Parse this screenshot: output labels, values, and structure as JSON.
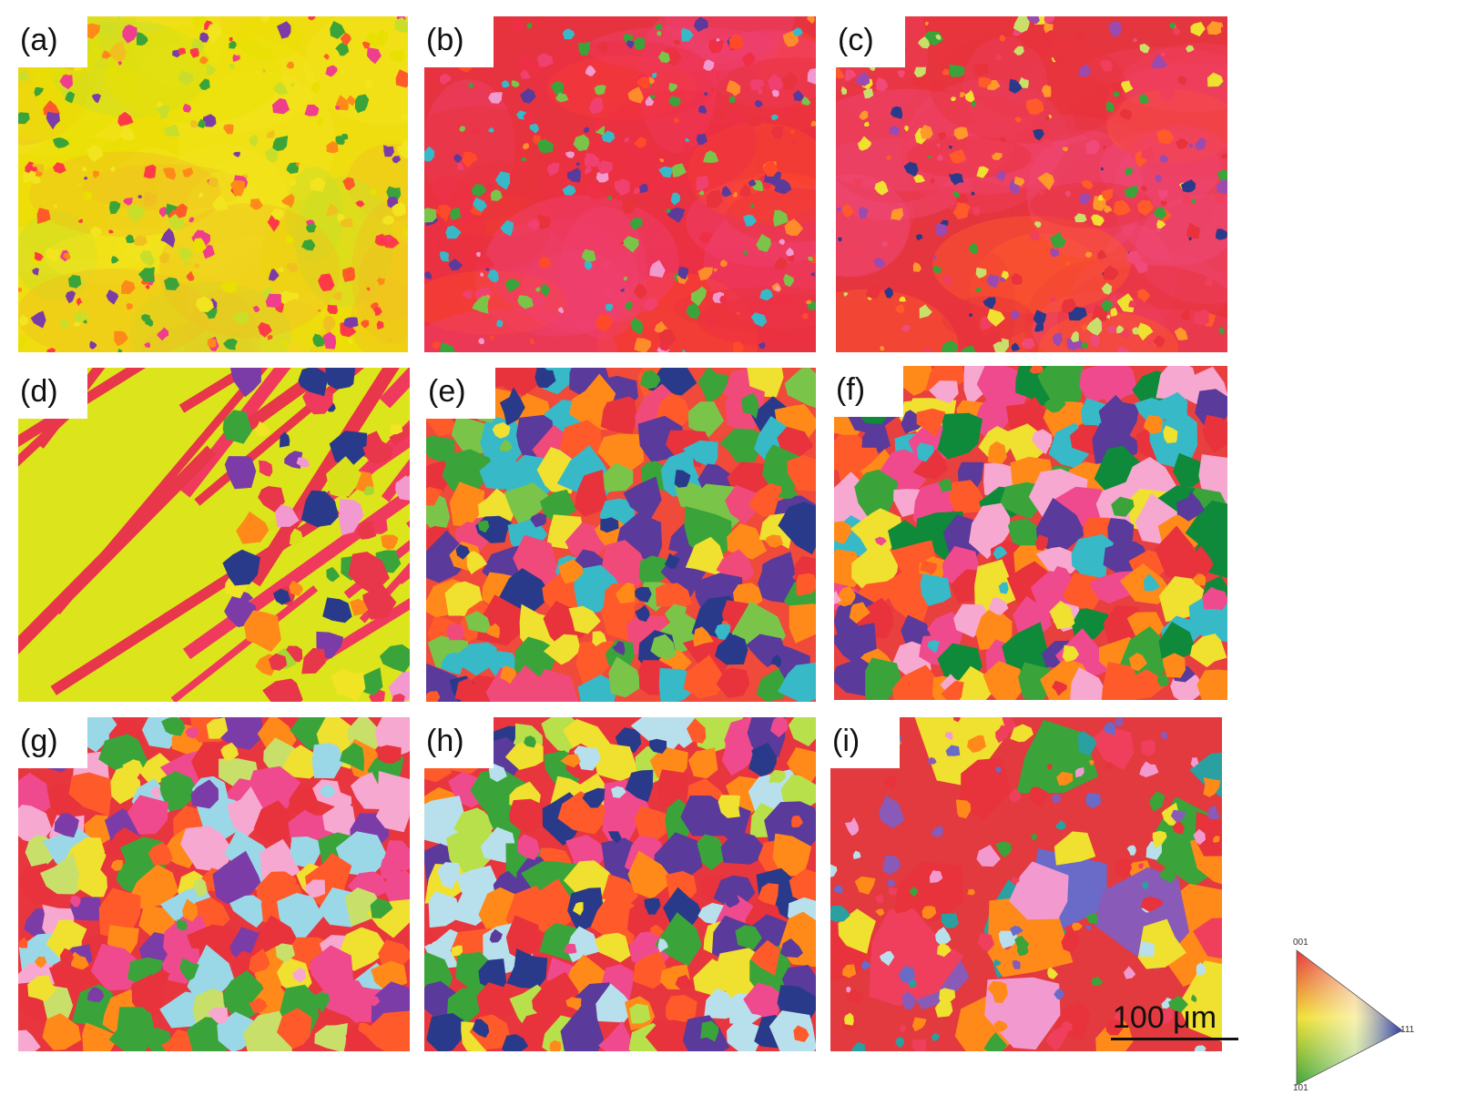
{
  "figure": {
    "panels": [
      {
        "label": "(a)",
        "palette": [
          "#e8e000",
          "#f2e51f",
          "#c9de2a",
          "#f0c020",
          "#ff8a1a",
          "#ff5a2a",
          "#ff3a48",
          "#ef3e8e",
          "#7b3ca8",
          "#3aa43a"
        ],
        "base": "#f0dd10"
      },
      {
        "label": "(b)",
        "palette": [
          "#e8323c",
          "#ef2f45",
          "#f04070",
          "#ff4a2a",
          "#ff8c2a",
          "#f29ad0",
          "#3aa43a",
          "#7bc44a",
          "#5a3a9a",
          "#37b9c8"
        ],
        "base": "#e6333f"
      },
      {
        "label": "(c)",
        "palette": [
          "#e8323c",
          "#ef3f5c",
          "#f04a7a",
          "#ff5a2a",
          "#9b4ab0",
          "#3aa43a",
          "#c8e06a",
          "#ff9a2a",
          "#2a3a8a",
          "#f0e030"
        ],
        "base": "#e5353f"
      },
      {
        "label": "(d)",
        "palette": [
          "#d8e01a",
          "#f0e424",
          "#a8d632",
          "#e8364a",
          "#ef3a5e",
          "#7b3ca8",
          "#3aa43a",
          "#ff8a1a",
          "#2a3a8a",
          "#f29ad0"
        ],
        "base": "#dce51c"
      },
      {
        "label": "(e)",
        "palette": [
          "#e8323c",
          "#ff8a1a",
          "#f04a7a",
          "#3aa43a",
          "#7bc44a",
          "#5a3a9a",
          "#f0e030",
          "#37b9c8",
          "#ff5a2a",
          "#2a3a8a"
        ],
        "base": "#ef4a3a"
      },
      {
        "label": "(f)",
        "palette": [
          "#e8323c",
          "#ff8a1a",
          "#ef4a8e",
          "#3aa43a",
          "#0f8a3a",
          "#5a3a9a",
          "#f0e030",
          "#37b9c8",
          "#ff5a2a",
          "#f7a8d0"
        ],
        "base": "#e8403e"
      },
      {
        "label": "(g)",
        "palette": [
          "#e8323c",
          "#ff8a1a",
          "#ef4a8e",
          "#3aa43a",
          "#c8e06a",
          "#7b3ca8",
          "#f0e030",
          "#9ad8e8",
          "#ff5a2a",
          "#f7a8d0"
        ],
        "base": "#e8363e"
      },
      {
        "label": "(h)",
        "palette": [
          "#e8323c",
          "#ff8a1a",
          "#ef4a8e",
          "#3aa43a",
          "#b8e04a",
          "#5a3a9a",
          "#f0e030",
          "#b8e0ec",
          "#ff5a2a",
          "#2a3a8a"
        ],
        "base": "#e8363e"
      },
      {
        "label": "(i)",
        "palette": [
          "#e8323c",
          "#ef3f5c",
          "#8a5ab8",
          "#6a6ac8",
          "#3aa43a",
          "#b8e0ec",
          "#f0e030",
          "#ff8a1a",
          "#2aa0a0",
          "#f29ad0"
        ],
        "base": "#e23a3e"
      }
    ],
    "scale_bar": "100 μm",
    "ipf_key": {
      "top": "001",
      "bottom_left": "101",
      "right": "111",
      "colors": [
        "#e8323c",
        "#3aa43a",
        "#2a3aa8"
      ]
    }
  }
}
